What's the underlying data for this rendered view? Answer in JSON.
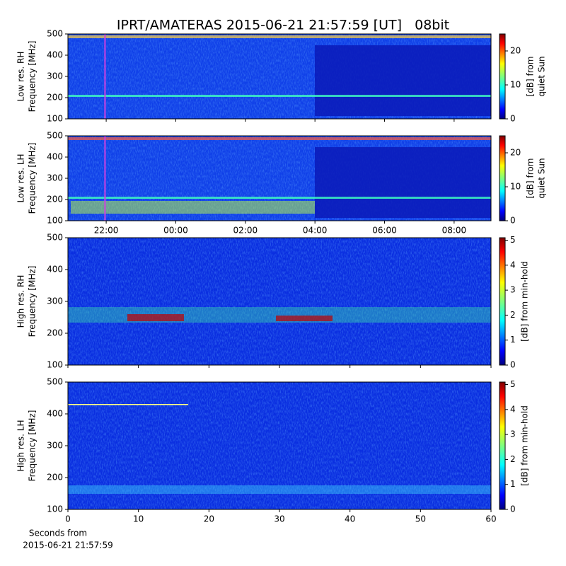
{
  "chart_data": [
    {
      "type": "spectrogram",
      "title": "IPRT/AMATERAS 2015-06-21 21:57:59 [UT]   08bit",
      "ylabel": [
        "Low res. RH",
        "Frequency [MHz]"
      ],
      "ylim": [
        100,
        500
      ],
      "yticks": [
        100,
        200,
        300,
        400,
        500
      ],
      "xlim": [
        20.9,
        33.06
      ],
      "xticks": [
        {
          "value": 22,
          "label": "22:00"
        },
        {
          "value": 24,
          "label": "00:00"
        },
        {
          "value": 26,
          "label": "02:00"
        },
        {
          "value": 28,
          "label": "04:00"
        },
        {
          "value": 30,
          "label": "06:00"
        },
        {
          "value": 32,
          "label": "08:00"
        }
      ],
      "marker_x": 21.966,
      "marker_color": "#d040e0",
      "colorbar_label": [
        "[dB] from",
        "quiet Sun"
      ],
      "clim": [
        0,
        25
      ],
      "cticks": [
        0,
        10,
        20
      ]
    },
    {
      "type": "spectrogram",
      "ylabel": [
        "Low res. LH",
        "Frequency [MHz]"
      ],
      "ylim": [
        100,
        500
      ],
      "yticks": [
        100,
        200,
        300,
        400,
        500
      ],
      "xlim": [
        20.9,
        33.06
      ],
      "xticks": [
        {
          "value": 22,
          "label": "22:00"
        },
        {
          "value": 24,
          "label": "00:00"
        },
        {
          "value": 26,
          "label": "02:00"
        },
        {
          "value": 28,
          "label": "04:00"
        },
        {
          "value": 30,
          "label": "06:00"
        },
        {
          "value": 32,
          "label": "08:00"
        }
      ],
      "marker_x": 21.966,
      "marker_color": "#d040e0",
      "colorbar_label": [
        "[dB] from",
        "quiet Sun"
      ],
      "clim": [
        0,
        25
      ],
      "cticks": [
        0,
        10,
        20
      ]
    },
    {
      "type": "spectrogram",
      "ylabel": [
        "High res. RH",
        "Frequency [MHz]"
      ],
      "ylim": [
        100,
        500
      ],
      "yticks": [
        100,
        200,
        300,
        400,
        500
      ],
      "xlim": [
        0,
        60
      ],
      "xticks": [
        0,
        10,
        20,
        30,
        40,
        50,
        60
      ],
      "colorbar_label": [
        "[dB] from min-hold"
      ],
      "clim": [
        0,
        5.1
      ],
      "cticks": [
        0,
        1,
        2,
        3,
        4,
        5
      ]
    },
    {
      "type": "spectrogram",
      "ylabel": [
        "High res. LH",
        "Frequency [MHz]"
      ],
      "ylim": [
        100,
        500
      ],
      "yticks": [
        100,
        200,
        300,
        400,
        500
      ],
      "xlim": [
        0,
        60
      ],
      "xticks": [
        0,
        10,
        20,
        30,
        40,
        50,
        60
      ],
      "xlabel": [
        "Seconds from",
        "2015-06-21 21:57:59"
      ],
      "colorbar_label": [
        "[dB] from min-hold"
      ],
      "clim": [
        0,
        5.1
      ],
      "cticks": [
        0,
        1,
        2,
        3,
        4,
        5
      ]
    }
  ]
}
